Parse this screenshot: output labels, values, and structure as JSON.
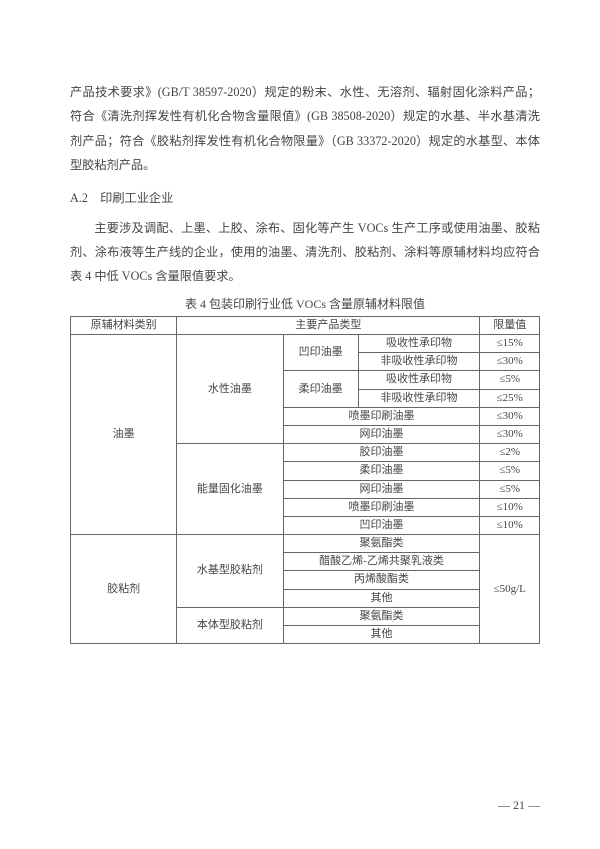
{
  "para1": "产品技术要求》(GB/T 38597-2020）规定的粉末、水性、无溶剂、辐射固化涂料产品；符合《清洗剂挥发性有机化合物含量限值》(GB 38508-2020）规定的水基、半水基清洗剂产品；符合《胶粘剂挥发性有机化合物限量》（GB 33372-2020）规定的水基型、本体型胶粘剂产品。",
  "heading": "A.2　印刷工业企业",
  "para2": "主要涉及调配、上墨、上胶、涂布、固化等产生 VOCs 生产工序或使用油墨、胶粘剂、涂布液等生产线的企业，使用的油墨、清洗剂、胶粘剂、涂料等原辅材料均应符合表 4 中低 VOCs 含量限值要求。",
  "tableTitle": "表 4  包装印刷行业低 VOCs 含量原辅材料限值",
  "headers": {
    "c1": "原辅材料类别",
    "c2": "主要产品类型",
    "c3": "限量值"
  },
  "ink": {
    "cat": "油墨",
    "shuixing": "水性油墨",
    "nengliang": "能量固化油墨",
    "aoyin": "凹印油墨",
    "rouyin": "柔印油墨",
    "penmo": "喷墨印刷油墨",
    "wangyin": "网印油墨",
    "jiaoyin": "胶印油墨",
    "aoyin2": "凹印油墨",
    "xishou": "吸收性承印物",
    "feixishou": "非吸收性承印物"
  },
  "glue": {
    "cat": "胶粘剂",
    "shuiji": "水基型胶粘剂",
    "benti": "本体型胶粘剂",
    "juanzhi": "聚氨酯类",
    "cusuan": "醋酸乙烯-乙烯共聚乳液类",
    "bingxi": "丙烯酸酯类",
    "qita": "其他"
  },
  "limits": {
    "l15": "≤15%",
    "l30": "≤30%",
    "l5": "≤5%",
    "l25": "≤25%",
    "l2": "≤2%",
    "l10": "≤10%",
    "g50": "≤50g/L"
  },
  "pageNum": "— 21 —",
  "style": {
    "bg": "#ffffff",
    "text": "#454545",
    "border": "#666666",
    "body_fontsize": 12.2,
    "table_fontsize": 11
  }
}
